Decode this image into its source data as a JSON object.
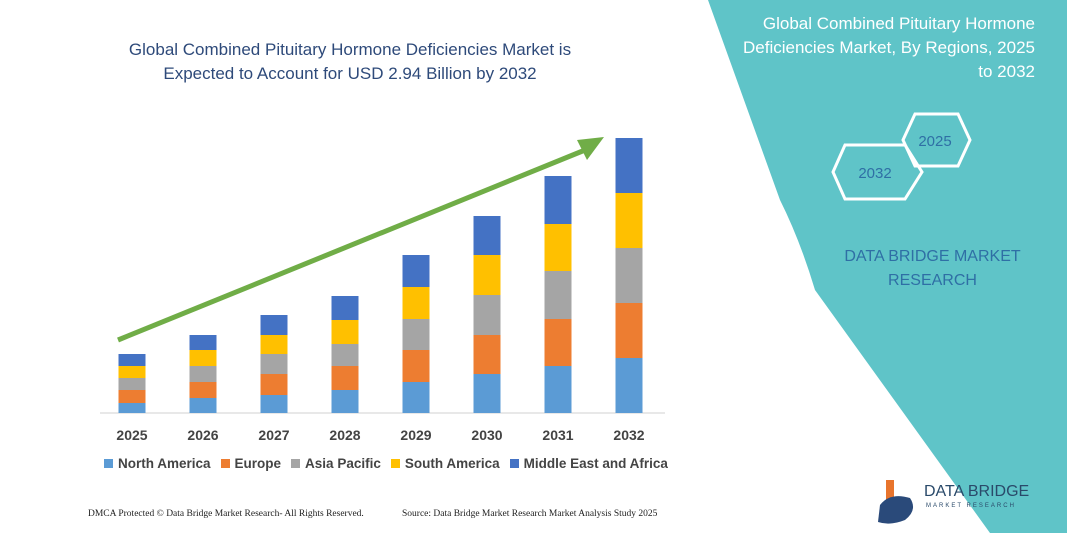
{
  "chart_data": {
    "type": "bar",
    "stacked": true,
    "title": "Global Combined Pituitary Hormone Deficiencies Market is Expected to Account for USD 2.94 Billion by 2032",
    "categories": [
      "2025",
      "2026",
      "2027",
      "2028",
      "2029",
      "2030",
      "2031",
      "2032"
    ],
    "series": [
      {
        "name": "North America",
        "color": "#5b9bd5",
        "values": [
          10,
          15,
          18,
          23,
          31,
          39,
          47,
          55
        ]
      },
      {
        "name": "Europe",
        "color": "#ed7d31",
        "values": [
          13,
          16,
          21,
          24,
          32,
          39,
          47,
          55
        ]
      },
      {
        "name": "Asia Pacific",
        "color": "#a5a5a5",
        "values": [
          12,
          16,
          20,
          22,
          31,
          40,
          48,
          55
        ]
      },
      {
        "name": "South America",
        "color": "#ffc000",
        "values": [
          12,
          16,
          19,
          24,
          32,
          40,
          47,
          55
        ]
      },
      {
        "name": "Middle East and Africa",
        "color": "#4472c4",
        "values": [
          12,
          15,
          20,
          24,
          32,
          39,
          48,
          55
        ]
      }
    ],
    "xlabel": "",
    "ylabel": "",
    "grid": false,
    "legend_position": "bottom",
    "trend_arrow_color": "#70ad47"
  },
  "side_panel": {
    "title": "Global Combined Pituitary Hormone Deficiencies Market, By Regions, 2025 to 2032",
    "hex_years": [
      "2032",
      "2025"
    ],
    "brand": "DATA BRIDGE MARKET RESEARCH",
    "color": "#5fc4c8"
  },
  "footer": {
    "copyright": "DMCA Protected © Data Bridge Market Research-  All Rights Reserved.",
    "source": "Source: Data Bridge Market Research  Market Analysis Study 2025"
  },
  "logo": {
    "name": "DATA BRIDGE",
    "tagline": "MARKET RESEARCH"
  }
}
